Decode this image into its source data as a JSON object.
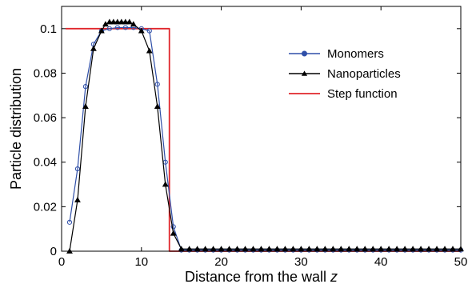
{
  "chart_data": {
    "type": "line",
    "xlabel_prefix": "Distance from the wall ",
    "xlabel_var": "z",
    "ylabel": "Particle distribution",
    "xlim": [
      0,
      50
    ],
    "ylim": [
      0,
      0.11
    ],
    "xticks": [
      0,
      10,
      20,
      30,
      40,
      50
    ],
    "xtick_labels": [
      "0",
      "10",
      "20",
      "30",
      "40",
      "50"
    ],
    "yticks": [
      0,
      0.02,
      0.04,
      0.06,
      0.08,
      0.1
    ],
    "ytick_labels": [
      "0",
      "0.02",
      "0.04",
      "0.06",
      "0.08",
      "0.1"
    ],
    "grid": false,
    "legend_position": "top-right",
    "series": [
      {
        "name": "Monomers",
        "color": "#2f4fa8",
        "marker": "circle",
        "x": [
          1,
          2,
          3,
          4,
          5,
          6,
          7,
          8,
          9,
          10,
          11,
          12,
          13,
          14,
          15,
          16,
          17,
          18,
          19,
          20,
          21,
          22,
          23,
          24,
          25,
          26,
          27,
          28,
          29,
          30,
          31,
          32,
          33,
          34,
          35,
          36,
          37,
          38,
          39,
          40,
          41,
          42,
          43,
          44,
          45,
          46,
          47,
          48,
          49,
          50
        ],
        "y": [
          0.013,
          0.037,
          0.074,
          0.093,
          0.099,
          0.1,
          0.1005,
          0.1005,
          0.1005,
          0.1,
          0.099,
          0.075,
          0.04,
          0.011,
          0.0005,
          0.0005,
          0.0005,
          0.0005,
          0.0005,
          0.0005,
          0.0005,
          0.0005,
          0.0005,
          0.0005,
          0.0005,
          0.0005,
          0.0005,
          0.0005,
          0.0005,
          0.0005,
          0.0005,
          0.0005,
          0.0005,
          0.0005,
          0.0005,
          0.0005,
          0.0005,
          0.0005,
          0.0005,
          0.0005,
          0.0005,
          0.0005,
          0.0005,
          0.0005,
          0.0005,
          0.0005,
          0.0005,
          0.0005,
          0.0005,
          0.0005
        ]
      },
      {
        "name": "Nanoparticles",
        "color": "#000000",
        "marker": "triangle",
        "x": [
          1,
          2,
          3,
          4,
          5,
          5.5,
          6,
          6.5,
          7,
          7.5,
          8,
          8.5,
          9,
          10,
          11,
          12,
          13,
          14,
          15,
          16,
          17,
          18,
          19,
          20,
          21,
          22,
          23,
          24,
          25,
          26,
          27,
          28,
          29,
          30,
          31,
          32,
          33,
          34,
          35,
          36,
          37,
          38,
          39,
          40,
          41,
          42,
          43,
          44,
          45,
          46,
          47,
          48,
          49,
          50
        ],
        "y": [
          0,
          0.023,
          0.065,
          0.091,
          0.099,
          0.102,
          0.103,
          0.103,
          0.103,
          0.103,
          0.103,
          0.103,
          0.102,
          0.099,
          0.09,
          0.065,
          0.03,
          0.008,
          0.001,
          0.001,
          0.001,
          0.001,
          0.001,
          0.001,
          0.001,
          0.001,
          0.001,
          0.001,
          0.001,
          0.001,
          0.001,
          0.001,
          0.001,
          0.001,
          0.001,
          0.001,
          0.001,
          0.001,
          0.001,
          0.001,
          0.001,
          0.001,
          0.001,
          0.001,
          0.001,
          0.001,
          0.001,
          0.001,
          0.001,
          0.001,
          0.001,
          0.001,
          0.001,
          0.001
        ]
      },
      {
        "name": "Step function",
        "color": "#e0262b",
        "marker": "none",
        "x": [
          0.5,
          13.5,
          13.5,
          50
        ],
        "y": [
          0.1,
          0.1,
          0,
          0
        ]
      }
    ]
  }
}
